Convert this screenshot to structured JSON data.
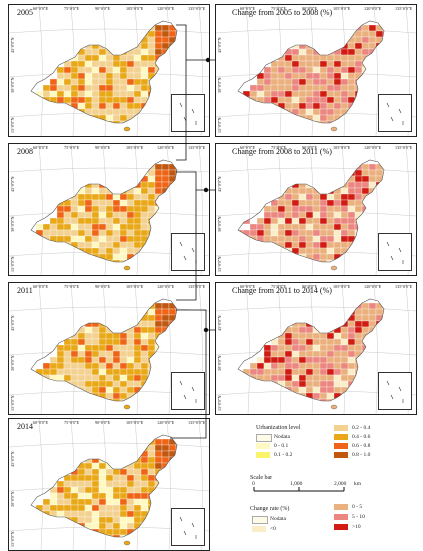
{
  "panels": [
    {
      "id": "p2005",
      "title": "2005",
      "kind": "level"
    },
    {
      "id": "c0508",
      "title": "Change from 2005 to 2008 (%)",
      "kind": "change"
    },
    {
      "id": "p2008",
      "title": "2008",
      "kind": "level"
    },
    {
      "id": "c0811",
      "title": "Change from 2008 to 2011 (%)",
      "kind": "change"
    },
    {
      "id": "p2011",
      "title": "2011",
      "kind": "level"
    },
    {
      "id": "c1114",
      "title": "Change from 2011 to 2014 (%)",
      "kind": "change"
    },
    {
      "id": "p2014",
      "title": "2014",
      "kind": "level"
    }
  ],
  "coords": {
    "top": [
      "60°0'0\"E",
      "75°0'0\"E",
      "90°0'0\"E",
      "105°0'0\"E",
      "120°0'0\"E",
      "135°0'0\"E"
    ],
    "left": [
      "45°0'0\"N",
      "30°0'0\"N",
      "15°0'0\"N"
    ]
  },
  "legend": {
    "urbanization_title": "Urbanization level",
    "urbanization_items": [
      {
        "label": "Nodata",
        "color": "#fdfbe8"
      },
      {
        "label": "0 - 0.1",
        "color": "#fff8c0"
      },
      {
        "label": "0.1 - 0.2",
        "color": "#faf46a"
      },
      {
        "label": "0.2 - 0.4",
        "color": "#f3d190"
      },
      {
        "label": "0.4 - 0.6",
        "color": "#e8a818"
      },
      {
        "label": "0.6 - 0.8",
        "color": "#f06418"
      },
      {
        "label": "0.8 - 1.0",
        "color": "#c05810"
      }
    ],
    "scale_title": "Scale bar",
    "scale_labels": [
      "0",
      "1,000",
      "2,000",
      "km"
    ],
    "change_title": "Change rate (%)",
    "change_items": [
      {
        "label": "Nodata",
        "color": "#fdfbe8"
      },
      {
        "label": "<0",
        "color": "#faeec8"
      },
      {
        "label": "0 - 5",
        "color": "#eab07e"
      },
      {
        "label": "5 - 10",
        "color": "#ec8680"
      },
      {
        "label": ">10",
        "color": "#d01c12"
      }
    ]
  }
}
